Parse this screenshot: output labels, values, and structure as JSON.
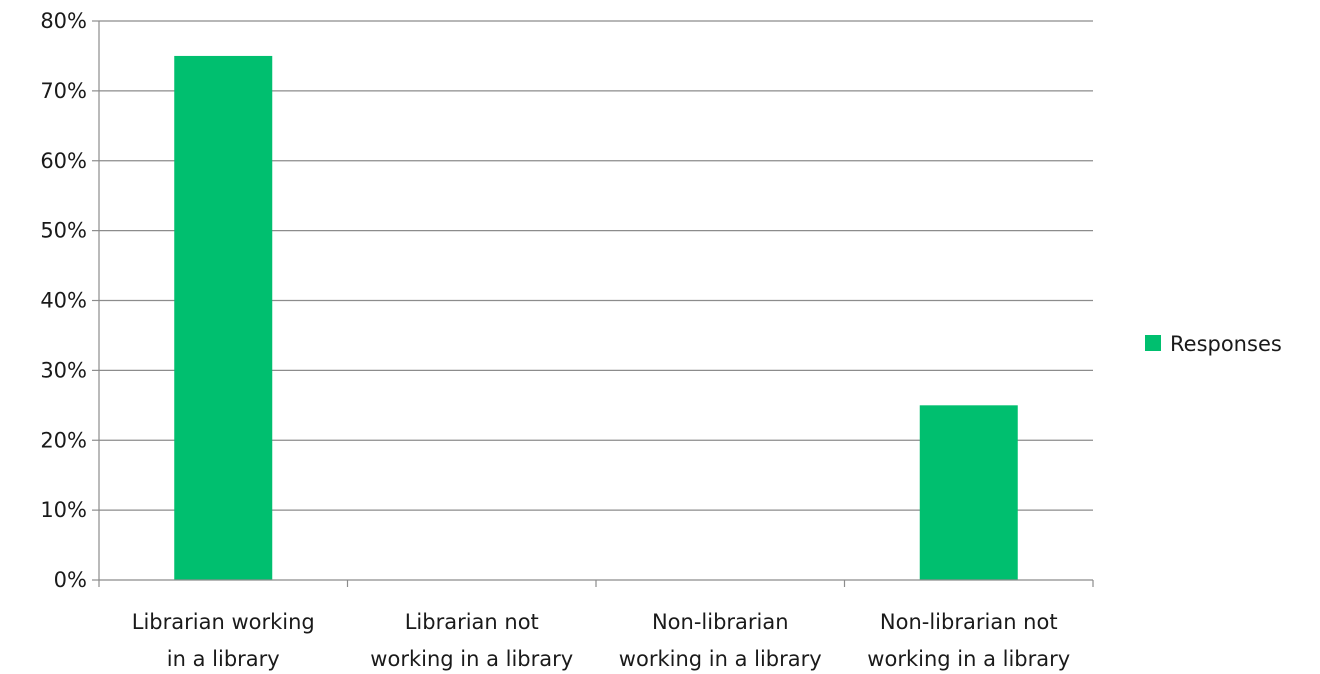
{
  "chart_data": {
    "type": "bar",
    "categories": [
      [
        "Librarian working",
        "in a library"
      ],
      [
        "Librarian not",
        "working in a library"
      ],
      [
        "Non-librarian",
        "working in a library"
      ],
      [
        "Non-librarian not",
        "working in a library"
      ]
    ],
    "series": [
      {
        "name": "Responses",
        "values": [
          0.75,
          0.0,
          0.0,
          0.25
        ],
        "color": "#00bf6f"
      }
    ],
    "ylim": [
      0,
      0.8
    ],
    "yticks": [
      0,
      0.1,
      0.2,
      0.3,
      0.4,
      0.5,
      0.6,
      0.7,
      0.8
    ],
    "ytick_labels": [
      "0%",
      "10%",
      "20%",
      "30%",
      "40%",
      "50%",
      "60%",
      "70%",
      "80%"
    ],
    "grid": true,
    "gridline_color": "#8c8c8c",
    "legend_position": "right",
    "title": "",
    "xlabel": "",
    "ylabel": ""
  }
}
